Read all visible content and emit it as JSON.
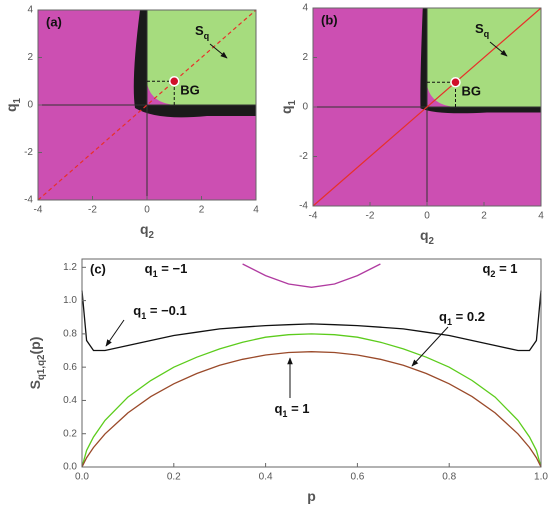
{
  "chart_data": [
    {
      "type": "region_map",
      "label": "(a)",
      "xlabel": [
        "q",
        "2"
      ],
      "ylabel": [
        "q",
        "1"
      ],
      "xlim": [
        -4,
        4
      ],
      "ylim": [
        -4,
        4
      ],
      "xticks": [
        -4,
        -2,
        0,
        2,
        4
      ],
      "yticks": [
        -4,
        -2,
        0,
        2,
        4
      ],
      "axes_lines": {
        "x": 0,
        "y": 0
      },
      "region_label": [
        "S",
        "q"
      ],
      "colors": {
        "outside": "#cc4fb2",
        "inside": "#a6dc7e",
        "rim": "#1a1a1a",
        "diagonal": "#e8302a"
      },
      "diagonal": {
        "x": [
          -4,
          4
        ],
        "y": [
          -4,
          4
        ],
        "style": "dashed"
      },
      "point": {
        "x": 1,
        "y": 1,
        "label": "BG"
      }
    },
    {
      "type": "region_map",
      "label": "(b)",
      "xlabel": [
        "q",
        "2"
      ],
      "ylabel": [
        "q",
        "1"
      ],
      "xlim": [
        -4,
        4
      ],
      "ylim": [
        -4,
        4
      ],
      "xticks": [
        -4,
        -2,
        0,
        2,
        4
      ],
      "yticks": [
        -4,
        -2,
        0,
        2,
        4
      ],
      "axes_lines": {
        "x": 0,
        "y": 0
      },
      "region_label": [
        "S",
        "q"
      ],
      "colors": {
        "outside": "#cc4fb2",
        "inside": "#a6dc7e",
        "rim": "#1a1a1a",
        "diagonal": "#e8302a"
      },
      "diagonal": {
        "x": [
          -4,
          4
        ],
        "y": [
          -4,
          4
        ],
        "style": "solid"
      },
      "point": {
        "x": 1,
        "y": 1,
        "label": "BG"
      }
    },
    {
      "type": "line",
      "label": "(c)",
      "xlabel": [
        "p"
      ],
      "ylabel": [
        "S",
        "q1,q2",
        "(p)"
      ],
      "note": [
        "q",
        "2",
        " = 1"
      ],
      "xlim": [
        0,
        1
      ],
      "ylim": [
        0,
        1.25
      ],
      "xticks": [
        {
          "value": 0,
          "label": "0.0"
        },
        0.2,
        0.4,
        0.6,
        0.8,
        {
          "value": 1,
          "label": "1.0"
        }
      ],
      "yticks": [
        {
          "value": 0,
          "label": "0.0"
        },
        0.2,
        0.4,
        0.6,
        0.8,
        {
          "value": 1,
          "label": "1.0"
        },
        1.2
      ],
      "x": [
        0,
        0.01,
        0.025,
        0.05,
        0.1,
        0.15,
        0.2,
        0.25,
        0.3,
        0.35,
        0.4,
        0.45,
        0.5,
        0.55,
        0.6,
        0.65,
        0.7,
        0.75,
        0.8,
        0.85,
        0.9,
        0.95,
        0.975,
        0.99,
        1
      ],
      "series": [
        {
          "label": [
            "q",
            "1",
            " = −1"
          ],
          "color": "#b03aa0",
          "values": [
            null,
            null,
            null,
            null,
            null,
            null,
            null,
            null,
            null,
            1.22,
            1.15,
            1.1,
            1.08,
            1.1,
            1.15,
            1.22,
            null,
            null,
            null,
            null,
            null,
            null,
            null,
            null,
            null
          ]
        },
        {
          "label": [
            "q",
            "1",
            " = −0.1"
          ],
          "color": "#111111",
          "values": [
            1.06,
            0.76,
            0.7,
            0.7,
            0.73,
            0.76,
            0.79,
            0.81,
            0.83,
            0.84,
            0.85,
            0.855,
            0.86,
            0.855,
            0.85,
            0.84,
            0.83,
            0.81,
            0.79,
            0.76,
            0.73,
            0.7,
            0.7,
            0.76,
            1.06
          ]
        },
        {
          "label": [
            "q",
            "1",
            " = 0.2"
          ],
          "color": "#5ccc1c",
          "values": [
            0,
            0.1,
            0.18,
            0.28,
            0.42,
            0.52,
            0.6,
            0.66,
            0.71,
            0.75,
            0.78,
            0.795,
            0.8,
            0.795,
            0.78,
            0.75,
            0.71,
            0.66,
            0.6,
            0.52,
            0.42,
            0.28,
            0.18,
            0.1,
            0
          ]
        },
        {
          "label": [
            "q",
            "1",
            " = 1"
          ],
          "color": "#9a4a2a",
          "values": [
            0,
            0.056,
            0.117,
            0.199,
            0.325,
            0.423,
            0.5,
            0.562,
            0.611,
            0.647,
            0.673,
            0.688,
            0.693,
            0.688,
            0.673,
            0.647,
            0.611,
            0.562,
            0.5,
            0.423,
            0.325,
            0.199,
            0.117,
            0.056,
            0
          ]
        }
      ]
    }
  ]
}
